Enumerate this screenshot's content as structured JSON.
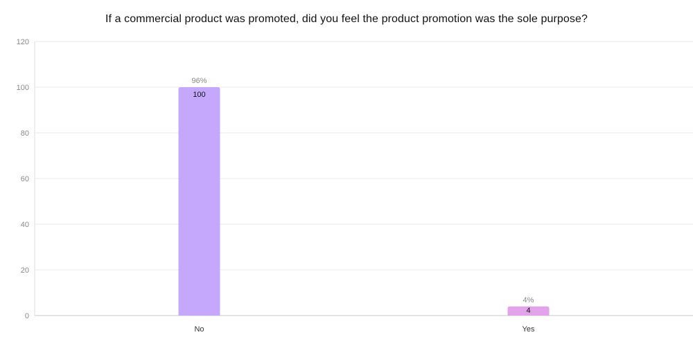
{
  "chart_data": {
    "type": "bar",
    "title": "If a commercial product was promoted, did you feel the product promotion was the sole purpose?",
    "categories": [
      "No",
      "Yes"
    ],
    "values": [
      100,
      4
    ],
    "percent_labels": [
      "96%",
      "4%"
    ],
    "value_labels": [
      "100",
      "4"
    ],
    "bar_colors": [
      "#c5a8fc",
      "#e3a3ea"
    ],
    "ylim": [
      0,
      120
    ],
    "yticks": [
      0,
      20,
      40,
      60,
      80,
      100,
      120
    ],
    "ytick_labels": [
      "0",
      "20",
      "40",
      "60",
      "80",
      "100",
      "120"
    ],
    "grid": true,
    "xlabel": "",
    "ylabel": ""
  },
  "colors": {
    "grid": "#e8e8ea",
    "axis": "#dcdce0"
  }
}
